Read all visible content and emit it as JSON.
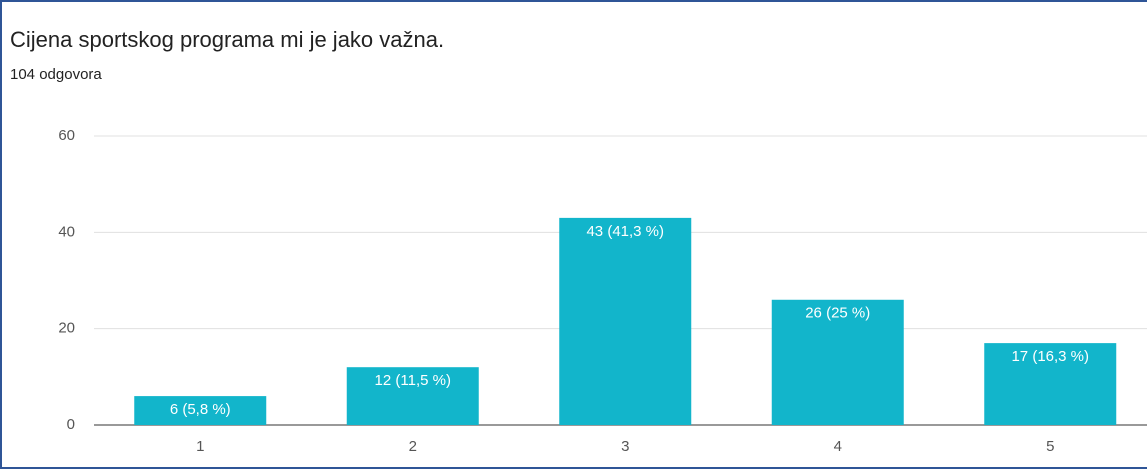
{
  "chart_data": {
    "type": "bar",
    "title": "Cijena sportskog programa mi je jako važna.",
    "subtitle": "104 odgovora",
    "categories": [
      "1",
      "2",
      "3",
      "4",
      "5"
    ],
    "values": [
      6,
      12,
      43,
      26,
      17
    ],
    "value_labels": [
      "6 (5,8 %)",
      "12 (11,5 %)",
      "43 (41,3 %)",
      "26 (25 %)",
      "17 (16,3 %)"
    ],
    "color": "#12b5cb",
    "ylim": [
      0,
      60
    ],
    "yticks": [
      0,
      20,
      40,
      60
    ],
    "grid": true
  }
}
